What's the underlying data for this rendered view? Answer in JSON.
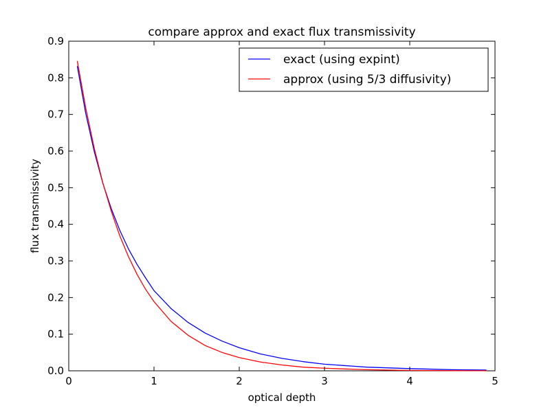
{
  "chart_data": {
    "type": "line",
    "title": "compare approx and exact flux transmissivity",
    "xlabel": "optical depth",
    "ylabel": "flux transmissivity",
    "xlim": [
      0,
      5
    ],
    "ylim": [
      0,
      0.9
    ],
    "xticks": [
      0,
      1,
      2,
      3,
      4,
      5
    ],
    "xtick_labels": [
      "0",
      "1",
      "2",
      "3",
      "4",
      "5"
    ],
    "yticks": [
      0,
      0.1,
      0.2,
      0.3,
      0.4,
      0.5,
      0.6,
      0.7,
      0.8,
      0.9
    ],
    "ytick_labels": [
      "0.0",
      "0.1",
      "0.2",
      "0.3",
      "0.4",
      "0.5",
      "0.6",
      "0.7",
      "0.8",
      "0.9"
    ],
    "grid": false,
    "legend_position": "top-right",
    "x": [
      0.1,
      0.2,
      0.3,
      0.4,
      0.5,
      0.6,
      0.7,
      0.8,
      0.9,
      1.0,
      1.2,
      1.4,
      1.6,
      1.8,
      2.0,
      2.25,
      2.5,
      2.75,
      3.0,
      3.5,
      4.0,
      4.5,
      4.9
    ],
    "series": [
      {
        "name": "exact (using expint)",
        "color": "#0000ff",
        "values": [
          0.832,
          0.702,
          0.598,
          0.512,
          0.442,
          0.383,
          0.333,
          0.291,
          0.254,
          0.219,
          0.17,
          0.132,
          0.103,
          0.081,
          0.063,
          0.046,
          0.034,
          0.025,
          0.018,
          0.01,
          0.006,
          0.003,
          0.002
        ]
      },
      {
        "name": "approx (using 5/3 diffusivity)",
        "color": "#ff0000",
        "values": [
          0.846,
          0.717,
          0.607,
          0.513,
          0.435,
          0.368,
          0.312,
          0.264,
          0.223,
          0.189,
          0.135,
          0.097,
          0.069,
          0.05,
          0.036,
          0.024,
          0.016,
          0.01,
          0.007,
          0.003,
          0.001,
          0.0005,
          0.0003
        ]
      }
    ]
  }
}
